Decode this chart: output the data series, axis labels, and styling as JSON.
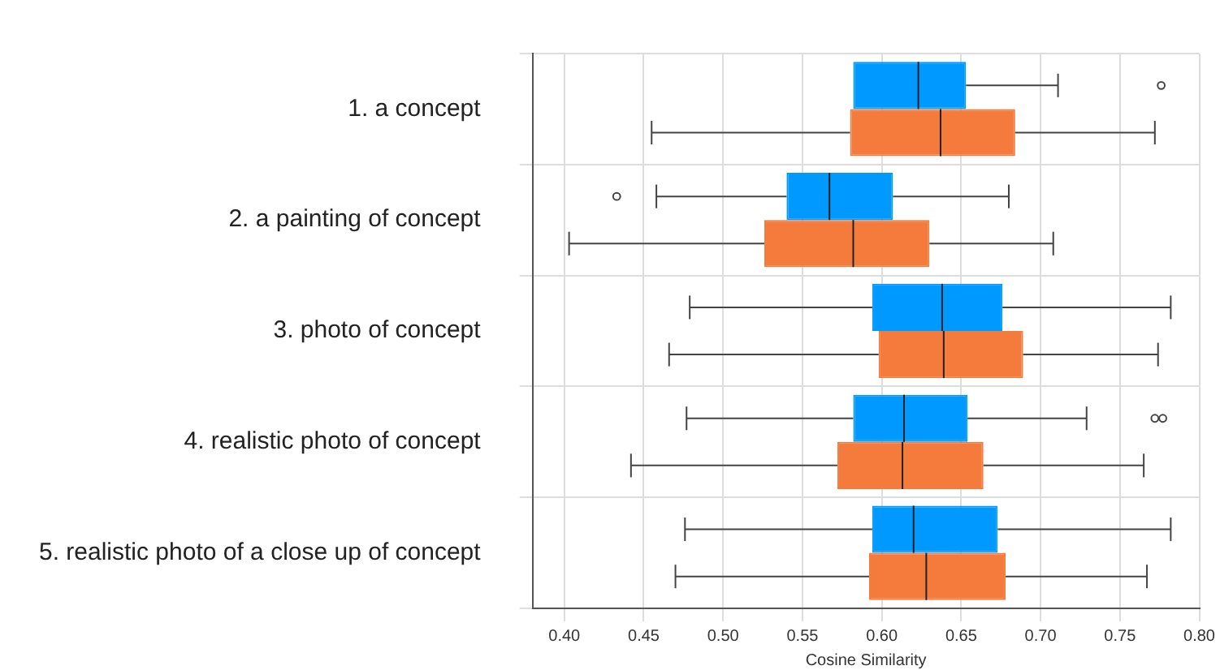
{
  "chart_data": {
    "type": "box",
    "orientation": "horizontal",
    "xlabel": "Cosine Similarity",
    "categories": [
      "1. a concept",
      "2. a painting of concept",
      "3. photo of concept",
      "4. realistic photo of concept",
      "5. realistic photo of a close up of concept"
    ],
    "series": [
      {
        "color": "#0099ff",
        "boxes": [
          {
            "low": null,
            "q1": 0.582,
            "median": 0.623,
            "q3": 0.653,
            "high": 0.711,
            "outliers": [
              0.776
            ]
          },
          {
            "low": 0.458,
            "q1": 0.54,
            "median": 0.567,
            "q3": 0.607,
            "high": 0.68,
            "outliers": [
              0.433
            ]
          },
          {
            "low": 0.479,
            "q1": 0.594,
            "median": 0.638,
            "q3": 0.676,
            "high": 0.782
          },
          {
            "low": 0.477,
            "q1": 0.582,
            "median": 0.614,
            "q3": 0.654,
            "high": 0.729,
            "outliers": [
              0.772,
              0.777
            ]
          },
          {
            "low": 0.476,
            "q1": 0.594,
            "median": 0.62,
            "q3": 0.673,
            "high": 0.782
          }
        ]
      },
      {
        "color": "#f47b3c",
        "boxes": [
          {
            "low": 0.455,
            "q1": 0.58,
            "median": 0.637,
            "q3": 0.684,
            "high": 0.772
          },
          {
            "low": 0.403,
            "q1": 0.526,
            "median": 0.582,
            "q3": 0.63,
            "high": 0.708
          },
          {
            "low": 0.466,
            "q1": 0.598,
            "median": 0.639,
            "q3": 0.689,
            "high": 0.774
          },
          {
            "low": 0.442,
            "q1": 0.572,
            "median": 0.613,
            "q3": 0.664,
            "high": 0.765
          },
          {
            "low": 0.47,
            "q1": 0.592,
            "median": 0.628,
            "q3": 0.678,
            "high": 0.767
          }
        ]
      }
    ],
    "xlim": [
      0.38,
      0.8
    ],
    "xticks": [
      {
        "value": 0.4,
        "label": "0.40"
      },
      {
        "value": 0.45,
        "label": "0.45"
      },
      {
        "value": 0.5,
        "label": "0.50"
      },
      {
        "value": 0.55,
        "label": "0.55"
      },
      {
        "value": 0.6,
        "label": "0.60"
      },
      {
        "value": 0.65,
        "label": "0.65"
      },
      {
        "value": 0.7,
        "label": "0.70"
      },
      {
        "value": 0.75,
        "label": "0.75"
      },
      {
        "value": 0.8,
        "label": "0.80"
      }
    ],
    "grid": true
  }
}
